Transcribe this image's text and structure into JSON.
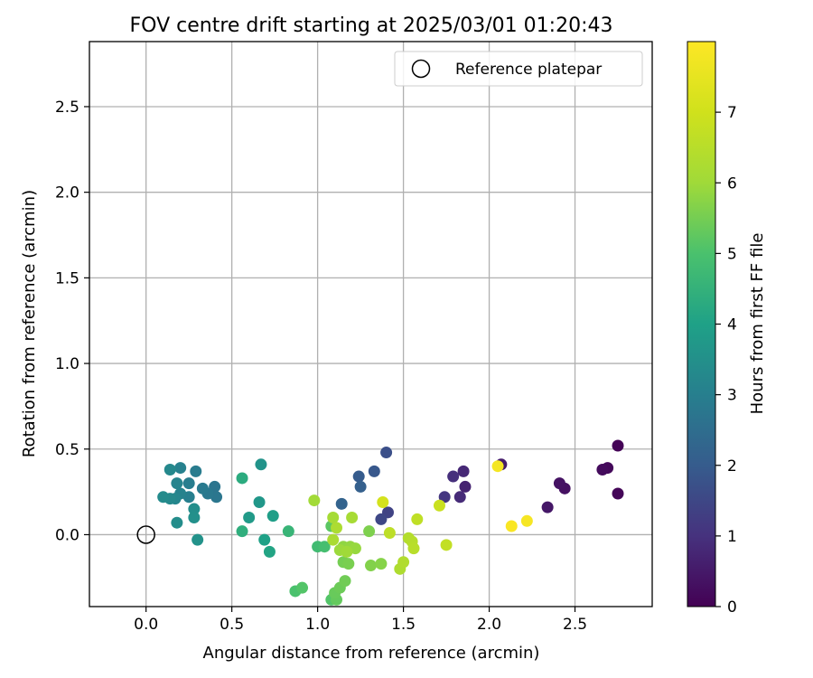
{
  "chart_data": {
    "type": "scatter",
    "title": "FOV centre drift starting at 2025/03/01 01:20:43",
    "xlabel": "Angular distance from reference (arcmin)",
    "ylabel": "Rotation from reference (arcmin)",
    "xlim": [
      -0.33,
      2.95
    ],
    "ylim": [
      -0.42,
      2.88
    ],
    "xticks": [
      "0.0",
      "0.5",
      "1.0",
      "1.5",
      "2.0",
      "2.5"
    ],
    "yticks": [
      "0.0",
      "0.5",
      "1.0",
      "1.5",
      "2.0",
      "2.5"
    ],
    "grid": true,
    "legend": {
      "placement": "top-right",
      "entries": [
        "Reference platepar"
      ]
    },
    "reference_point": {
      "x": 0.0,
      "y": 0.0,
      "marker": "open-circle"
    },
    "colorbar": {
      "label": "Hours from first FF file",
      "colormap": "viridis",
      "range": [
        0,
        8
      ],
      "ticks": [
        "0",
        "1",
        "2",
        "3",
        "4",
        "5",
        "6",
        "7"
      ]
    },
    "points": [
      {
        "x": 2.75,
        "y": 0.52,
        "h": 0.05
      },
      {
        "x": 2.75,
        "y": 0.24,
        "h": 0.1
      },
      {
        "x": 2.69,
        "y": 0.39,
        "h": 0.15
      },
      {
        "x": 2.66,
        "y": 0.38,
        "h": 0.2
      },
      {
        "x": 2.44,
        "y": 0.27,
        "h": 0.3
      },
      {
        "x": 2.41,
        "y": 0.3,
        "h": 0.35
      },
      {
        "x": 2.34,
        "y": 0.16,
        "h": 0.45
      },
      {
        "x": 2.07,
        "y": 0.41,
        "h": 0.55
      },
      {
        "x": 1.86,
        "y": 0.28,
        "h": 0.7
      },
      {
        "x": 1.85,
        "y": 0.37,
        "h": 0.8
      },
      {
        "x": 1.83,
        "y": 0.22,
        "h": 0.85
      },
      {
        "x": 1.79,
        "y": 0.34,
        "h": 0.95
      },
      {
        "x": 1.74,
        "y": 0.22,
        "h": 1.1
      },
      {
        "x": 1.41,
        "y": 0.13,
        "h": 1.4
      },
      {
        "x": 1.37,
        "y": 0.09,
        "h": 1.5
      },
      {
        "x": 1.4,
        "y": 0.48,
        "h": 1.7
      },
      {
        "x": 1.33,
        "y": 0.37,
        "h": 1.9
      },
      {
        "x": 1.24,
        "y": 0.34,
        "h": 2.0
      },
      {
        "x": 1.25,
        "y": 0.28,
        "h": 2.1
      },
      {
        "x": 1.14,
        "y": 0.18,
        "h": 2.2
      },
      {
        "x": 0.4,
        "y": 0.28,
        "h": 2.7
      },
      {
        "x": 0.41,
        "y": 0.22,
        "h": 2.75
      },
      {
        "x": 0.36,
        "y": 0.24,
        "h": 2.8
      },
      {
        "x": 0.33,
        "y": 0.27,
        "h": 2.85
      },
      {
        "x": 0.29,
        "y": 0.37,
        "h": 2.9
      },
      {
        "x": 0.25,
        "y": 0.3,
        "h": 2.95
      },
      {
        "x": 0.25,
        "y": 0.22,
        "h": 3.0
      },
      {
        "x": 0.2,
        "y": 0.39,
        "h": 3.05
      },
      {
        "x": 0.2,
        "y": 0.24,
        "h": 3.1
      },
      {
        "x": 0.18,
        "y": 0.3,
        "h": 3.15
      },
      {
        "x": 0.17,
        "y": 0.21,
        "h": 3.2
      },
      {
        "x": 0.14,
        "y": 0.38,
        "h": 3.25
      },
      {
        "x": 0.14,
        "y": 0.21,
        "h": 3.3
      },
      {
        "x": 0.1,
        "y": 0.22,
        "h": 3.35
      },
      {
        "x": 0.18,
        "y": 0.07,
        "h": 3.4
      },
      {
        "x": 0.28,
        "y": 0.15,
        "h": 3.45
      },
      {
        "x": 0.28,
        "y": 0.1,
        "h": 3.5
      },
      {
        "x": 0.3,
        "y": -0.03,
        "h": 3.55
      },
      {
        "x": 0.67,
        "y": 0.41,
        "h": 3.6
      },
      {
        "x": 0.66,
        "y": 0.19,
        "h": 3.7
      },
      {
        "x": 0.6,
        "y": 0.1,
        "h": 3.8
      },
      {
        "x": 0.74,
        "y": 0.11,
        "h": 3.9
      },
      {
        "x": 0.69,
        "y": -0.03,
        "h": 4.0
      },
      {
        "x": 0.72,
        "y": -0.1,
        "h": 4.1
      },
      {
        "x": 0.56,
        "y": 0.33,
        "h": 4.3
      },
      {
        "x": 0.56,
        "y": 0.02,
        "h": 4.4
      },
      {
        "x": 0.83,
        "y": 0.02,
        "h": 4.6
      },
      {
        "x": 1.0,
        "y": -0.07,
        "h": 4.8
      },
      {
        "x": 1.04,
        "y": -0.07,
        "h": 4.9
      },
      {
        "x": 0.87,
        "y": -0.33,
        "h": 5.0
      },
      {
        "x": 0.91,
        "y": -0.31,
        "h": 5.1
      },
      {
        "x": 1.08,
        "y": -0.38,
        "h": 5.1
      },
      {
        "x": 1.08,
        "y": 0.05,
        "h": 5.2
      },
      {
        "x": 1.11,
        "y": -0.38,
        "h": 5.3
      },
      {
        "x": 1.1,
        "y": -0.34,
        "h": 5.35
      },
      {
        "x": 1.13,
        "y": -0.31,
        "h": 5.4
      },
      {
        "x": 1.16,
        "y": -0.27,
        "h": 5.45
      },
      {
        "x": 1.15,
        "y": -0.16,
        "h": 5.5
      },
      {
        "x": 1.18,
        "y": -0.17,
        "h": 5.55
      },
      {
        "x": 1.3,
        "y": 0.02,
        "h": 5.6
      },
      {
        "x": 1.31,
        "y": -0.18,
        "h": 5.65
      },
      {
        "x": 1.37,
        "y": -0.17,
        "h": 5.7
      },
      {
        "x": 1.15,
        "y": -0.07,
        "h": 5.8
      },
      {
        "x": 1.19,
        "y": -0.07,
        "h": 5.85
      },
      {
        "x": 1.22,
        "y": -0.08,
        "h": 5.9
      },
      {
        "x": 1.13,
        "y": -0.09,
        "h": 5.95
      },
      {
        "x": 1.17,
        "y": -0.1,
        "h": 6.0
      },
      {
        "x": 0.98,
        "y": 0.2,
        "h": 6.05
      },
      {
        "x": 1.09,
        "y": 0.1,
        "h": 6.1
      },
      {
        "x": 1.2,
        "y": 0.1,
        "h": 6.15
      },
      {
        "x": 1.09,
        "y": -0.03,
        "h": 6.2
      },
      {
        "x": 1.11,
        "y": 0.04,
        "h": 6.25
      },
      {
        "x": 1.48,
        "y": -0.2,
        "h": 6.3
      },
      {
        "x": 1.5,
        "y": -0.16,
        "h": 6.35
      },
      {
        "x": 1.53,
        "y": -0.02,
        "h": 6.4
      },
      {
        "x": 1.55,
        "y": -0.04,
        "h": 6.45
      },
      {
        "x": 1.56,
        "y": -0.08,
        "h": 6.5
      },
      {
        "x": 1.42,
        "y": 0.01,
        "h": 6.6
      },
      {
        "x": 1.58,
        "y": 0.09,
        "h": 6.65
      },
      {
        "x": 1.75,
        "y": -0.06,
        "h": 6.7
      },
      {
        "x": 1.71,
        "y": 0.17,
        "h": 6.85
      },
      {
        "x": 1.38,
        "y": 0.19,
        "h": 7.1
      },
      {
        "x": 2.05,
        "y": 0.4,
        "h": 7.8
      },
      {
        "x": 2.22,
        "y": 0.08,
        "h": 7.85
      },
      {
        "x": 2.13,
        "y": 0.05,
        "h": 7.9
      }
    ]
  }
}
